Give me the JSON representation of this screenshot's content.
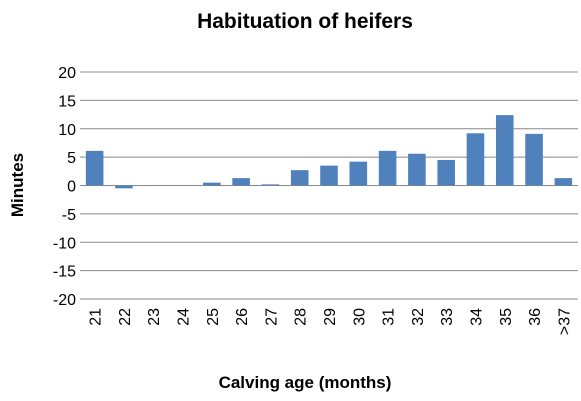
{
  "chart_data": {
    "type": "bar",
    "title": "Habituation of heifers",
    "x_label": "Calving age (months)",
    "y_label": "Minutes",
    "categories": [
      "21",
      "22",
      "23",
      "24",
      "25",
      "26",
      "27",
      "28",
      "29",
      "30",
      "31",
      "32",
      "33",
      "34",
      "35",
      "36",
      ">37"
    ],
    "values": [
      6.1,
      -0.5,
      0,
      0,
      0.5,
      1.3,
      0.2,
      2.7,
      3.5,
      4.2,
      6.1,
      5.6,
      4.5,
      9.2,
      12.4,
      9.1,
      1.3
    ],
    "color": "#4f81bd",
    "ylim": [
      -20,
      20
    ],
    "yticks": [
      -20,
      -15,
      -10,
      -5,
      0,
      5,
      10,
      15,
      20
    ],
    "grid": true
  }
}
